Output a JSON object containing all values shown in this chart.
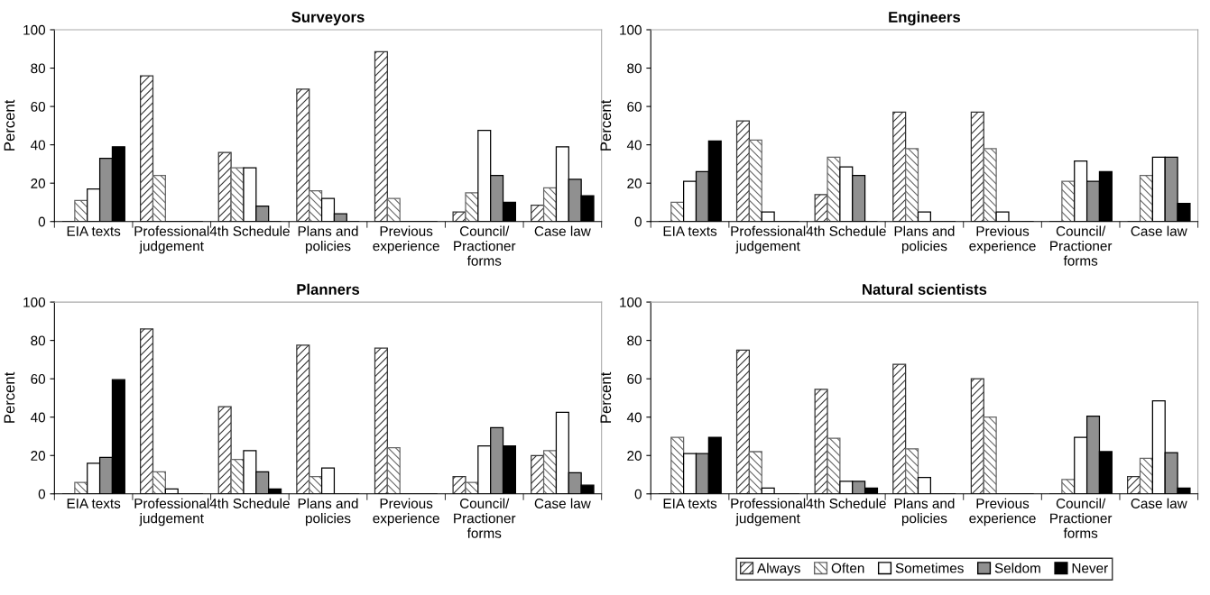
{
  "chart_data": [
    {
      "type": "bar",
      "title": "Surveyors",
      "ylabel": "Percent",
      "categories": [
        "EIA texts",
        "Professional\njudgement",
        "4th Schedule",
        "Plans and\npolicies",
        "Previous\nexperience",
        "Council/\nPractioner\nforms",
        "Case law"
      ],
      "ylim": [
        0,
        100
      ],
      "yticks": [
        0,
        20,
        40,
        60,
        80,
        100
      ],
      "grid": false,
      "legend": false,
      "series": [
        {
          "color": "#333333",
          "values": [
            0,
            76,
            36,
            69,
            88.5,
            5,
            8.5
          ]
        },
        {
          "color": "#666666",
          "values": [
            11,
            24,
            28,
            16,
            12,
            15,
            17.5
          ]
        },
        {
          "color": "#ffffff",
          "values": [
            17,
            0,
            28,
            12,
            0,
            47.5,
            39
          ]
        },
        {
          "color": "#909090",
          "values": [
            33,
            0,
            8,
            4,
            0,
            24,
            22
          ]
        },
        {
          "color": "#000000",
          "values": [
            39,
            0,
            0,
            0,
            0,
            10,
            13.5
          ]
        }
      ]
    },
    {
      "type": "bar",
      "title": "Engineers",
      "ylabel": "Percent",
      "categories": [
        "EIA texts",
        "Professional\njudgement",
        "4th Schedule",
        "Plans and\npolicies",
        "Previous\nexperience",
        "Council/\nPractioner\nforms",
        "Case law"
      ],
      "ylim": [
        0,
        100
      ],
      "yticks": [
        0,
        20,
        40,
        60,
        80,
        100
      ],
      "grid": false,
      "legend": false,
      "series": [
        {
          "color": "#333333",
          "values": [
            0,
            52.5,
            14,
            57,
            57,
            0,
            0
          ]
        },
        {
          "color": "#666666",
          "values": [
            10,
            42.5,
            33.5,
            38,
            38,
            21,
            24
          ]
        },
        {
          "color": "#ffffff",
          "values": [
            21,
            5,
            28.5,
            5,
            5,
            31.5,
            33.5
          ]
        },
        {
          "color": "#909090",
          "values": [
            26,
            0,
            24,
            0,
            0,
            21,
            33.5
          ]
        },
        {
          "color": "#000000",
          "values": [
            42,
            0,
            0,
            0,
            0,
            26,
            9.5
          ]
        }
      ]
    },
    {
      "type": "bar",
      "title": "Planners",
      "ylabel": "Percent",
      "categories": [
        "EIA texts",
        "Professional\njudgement",
        "4th Schedule",
        "Plans and\npolicies",
        "Previous\nexperience",
        "Council/\nPractioner\nforms",
        "Case law"
      ],
      "ylim": [
        0,
        100
      ],
      "yticks": [
        0,
        20,
        40,
        60,
        80,
        100
      ],
      "grid": false,
      "legend": false,
      "series": [
        {
          "color": "#333333",
          "values": [
            0,
            86,
            45.5,
            77.5,
            76,
            9,
            20
          ]
        },
        {
          "color": "#666666",
          "values": [
            6,
            11.5,
            18,
            9,
            24,
            6,
            22.5
          ]
        },
        {
          "color": "#ffffff",
          "values": [
            16,
            2.5,
            22.5,
            13.5,
            0,
            25,
            42.5
          ]
        },
        {
          "color": "#909090",
          "values": [
            19,
            0,
            11.5,
            0,
            0,
            34.5,
            11
          ]
        },
        {
          "color": "#000000",
          "values": [
            59.5,
            0,
            2.5,
            0,
            0,
            25,
            4.5
          ]
        }
      ]
    },
    {
      "type": "bar",
      "title": "Natural scientists",
      "ylabel": "Percent",
      "categories": [
        "EIA texts",
        "Professional\njudgement",
        "4th Schedule",
        "Plans and\npolicies",
        "Previous\nexperience",
        "Council/\nPractioner\nforms",
        "Case law"
      ],
      "ylim": [
        0,
        100
      ],
      "yticks": [
        0,
        20,
        40,
        60,
        80,
        100
      ],
      "grid": false,
      "legend": "bottom",
      "series": [
        {
          "name": "Always",
          "color": "#333333",
          "values": [
            0,
            75,
            54.5,
            67.5,
            60,
            0,
            9
          ]
        },
        {
          "name": "Often",
          "color": "#666666",
          "values": [
            29.5,
            22,
            29,
            23.5,
            40,
            7.5,
            18.5
          ]
        },
        {
          "name": "Sometimes",
          "color": "#ffffff",
          "values": [
            21,
            3,
            6.5,
            8.5,
            0,
            29.5,
            48.5
          ]
        },
        {
          "name": "Seldom",
          "color": "#909090",
          "values": [
            21,
            0,
            6.5,
            0,
            0,
            40.5,
            21.5
          ]
        },
        {
          "name": "Never",
          "color": "#000000",
          "values": [
            29.5,
            0,
            3,
            0,
            0,
            22,
            3
          ]
        }
      ]
    }
  ]
}
